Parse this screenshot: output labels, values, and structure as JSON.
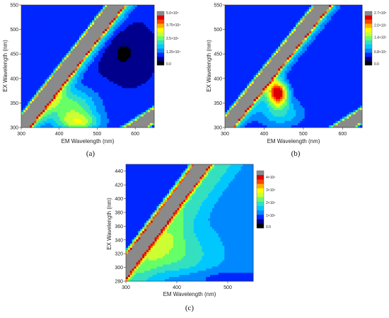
{
  "colors": {
    "colormap": [
      "#000000",
      "#00008c",
      "#0026ff",
      "#0088ff",
      "#00c8ff",
      "#33e0c0",
      "#66ff66",
      "#ccff33",
      "#ffff00",
      "#ffb000",
      "#ff4400",
      "#dd0000",
      "#8a8a8a"
    ],
    "saturated": "#8a8a8a",
    "frame": "#333333"
  },
  "chart_data": [
    {
      "type": "heatmap",
      "panel_label": "(a)",
      "xlabel": "EM Wavelength (nm)",
      "ylabel": "EX Wavelength (nm)",
      "xlim": [
        300,
        650
      ],
      "ylim": [
        300,
        550
      ],
      "xticks": [
        300,
        400,
        500,
        600
      ],
      "yticks": [
        300,
        350,
        400,
        450,
        500,
        550
      ],
      "colorbar": {
        "min": 0,
        "max": 50000,
        "labels": [
          {
            "value": 50000,
            "text": "5.0×10⁴"
          },
          {
            "value": 37500,
            "text": "3.75×10⁴"
          },
          {
            "value": 25000,
            "text": "2.5×10⁴"
          },
          {
            "value": 12500,
            "text": "1.25×10⁴"
          },
          {
            "value": 0,
            "text": "0.0"
          }
        ]
      },
      "features": {
        "background": 0.17,
        "rayleigh_band": {
          "offset": 0,
          "halfwidth": 22,
          "level": 1.0
        },
        "second_order_band": {
          "factor": 2,
          "halfwidth": 14,
          "level": 1.0
        },
        "ridge": {
          "offset": 20,
          "width": 30,
          "level": 0.68
        },
        "peaks": [
          {
            "em": 430,
            "ex": 340,
            "sem": 70,
            "sex": 40,
            "level": 0.38
          },
          {
            "em": 455,
            "ex": 310,
            "sem": 55,
            "sex": 18,
            "level": 0.3
          }
        ],
        "dips": [
          {
            "em": 570,
            "ex": 450,
            "sem": 50,
            "sex": 40,
            "level": -0.1
          }
        ]
      }
    },
    {
      "type": "heatmap",
      "panel_label": "(b)",
      "xlabel": "EM Wavelength (nm)",
      "ylabel": "EX Wavelength (nm)",
      "xlim": [
        300,
        650
      ],
      "ylim": [
        300,
        550
      ],
      "xticks": [
        300,
        400,
        500,
        600
      ],
      "yticks": [
        300,
        350,
        400,
        450,
        500,
        550
      ],
      "colorbar": {
        "min": 0,
        "max": 270000,
        "labels": [
          {
            "value": 270000,
            "text": "2.7×10⁵"
          },
          {
            "value": 200000,
            "text": "2.0×10⁵"
          },
          {
            "value": 140000,
            "text": "1.4×10⁵"
          },
          {
            "value": 68000,
            "text": "6.8×10⁴"
          },
          {
            "value": 0,
            "text": "0.0"
          }
        ]
      },
      "features": {
        "background": 0.17,
        "rayleigh_band": {
          "offset": 0,
          "halfwidth": 20,
          "level": 1.0
        },
        "second_order_band": {
          "factor": 2,
          "halfwidth": 13,
          "level": 1.0
        },
        "ridge": {
          "offset": 18,
          "width": 28,
          "level": 0.6
        },
        "peaks": [
          {
            "em": 435,
            "ex": 370,
            "sem": 24,
            "sex": 24,
            "level": 0.85
          },
          {
            "em": 440,
            "ex": 330,
            "sem": 60,
            "sex": 30,
            "level": 0.25
          }
        ],
        "dips": []
      }
    },
    {
      "type": "heatmap",
      "panel_label": "(c)",
      "xlabel": "EM Wavelength (nm)",
      "ylabel": "EX Wavelength (nm)",
      "xlim": [
        300,
        550
      ],
      "ylim": [
        280,
        450
      ],
      "xticks": [
        300,
        400,
        500
      ],
      "yticks": [
        280,
        300,
        320,
        340,
        360,
        380,
        400,
        420,
        440
      ],
      "colorbar": {
        "min": 0,
        "max": 45000,
        "labels": [
          {
            "value": 40000,
            "text": "4×10⁴"
          },
          {
            "value": 30000,
            "text": "3×10⁴"
          },
          {
            "value": 20000,
            "text": "2×10⁴"
          },
          {
            "value": 10000,
            "text": "1×10⁴"
          },
          {
            "value": 0,
            "text": "0.0"
          }
        ]
      },
      "features": {
        "background": 0.3,
        "rayleigh_band": {
          "offset": 0,
          "halfwidth": 16,
          "level": 1.0
        },
        "second_order_band": null,
        "ridge": {
          "offset": 30,
          "width": 40,
          "level": 0.6
        },
        "peaks": [
          {
            "em": 400,
            "ex": 320,
            "sem": 70,
            "sex": 40,
            "level": 0.2
          }
        ],
        "dips": [
          {
            "em": 470,
            "ex": 285,
            "sem": 120,
            "sex": 12,
            "level": -0.1
          }
        ]
      }
    }
  ]
}
